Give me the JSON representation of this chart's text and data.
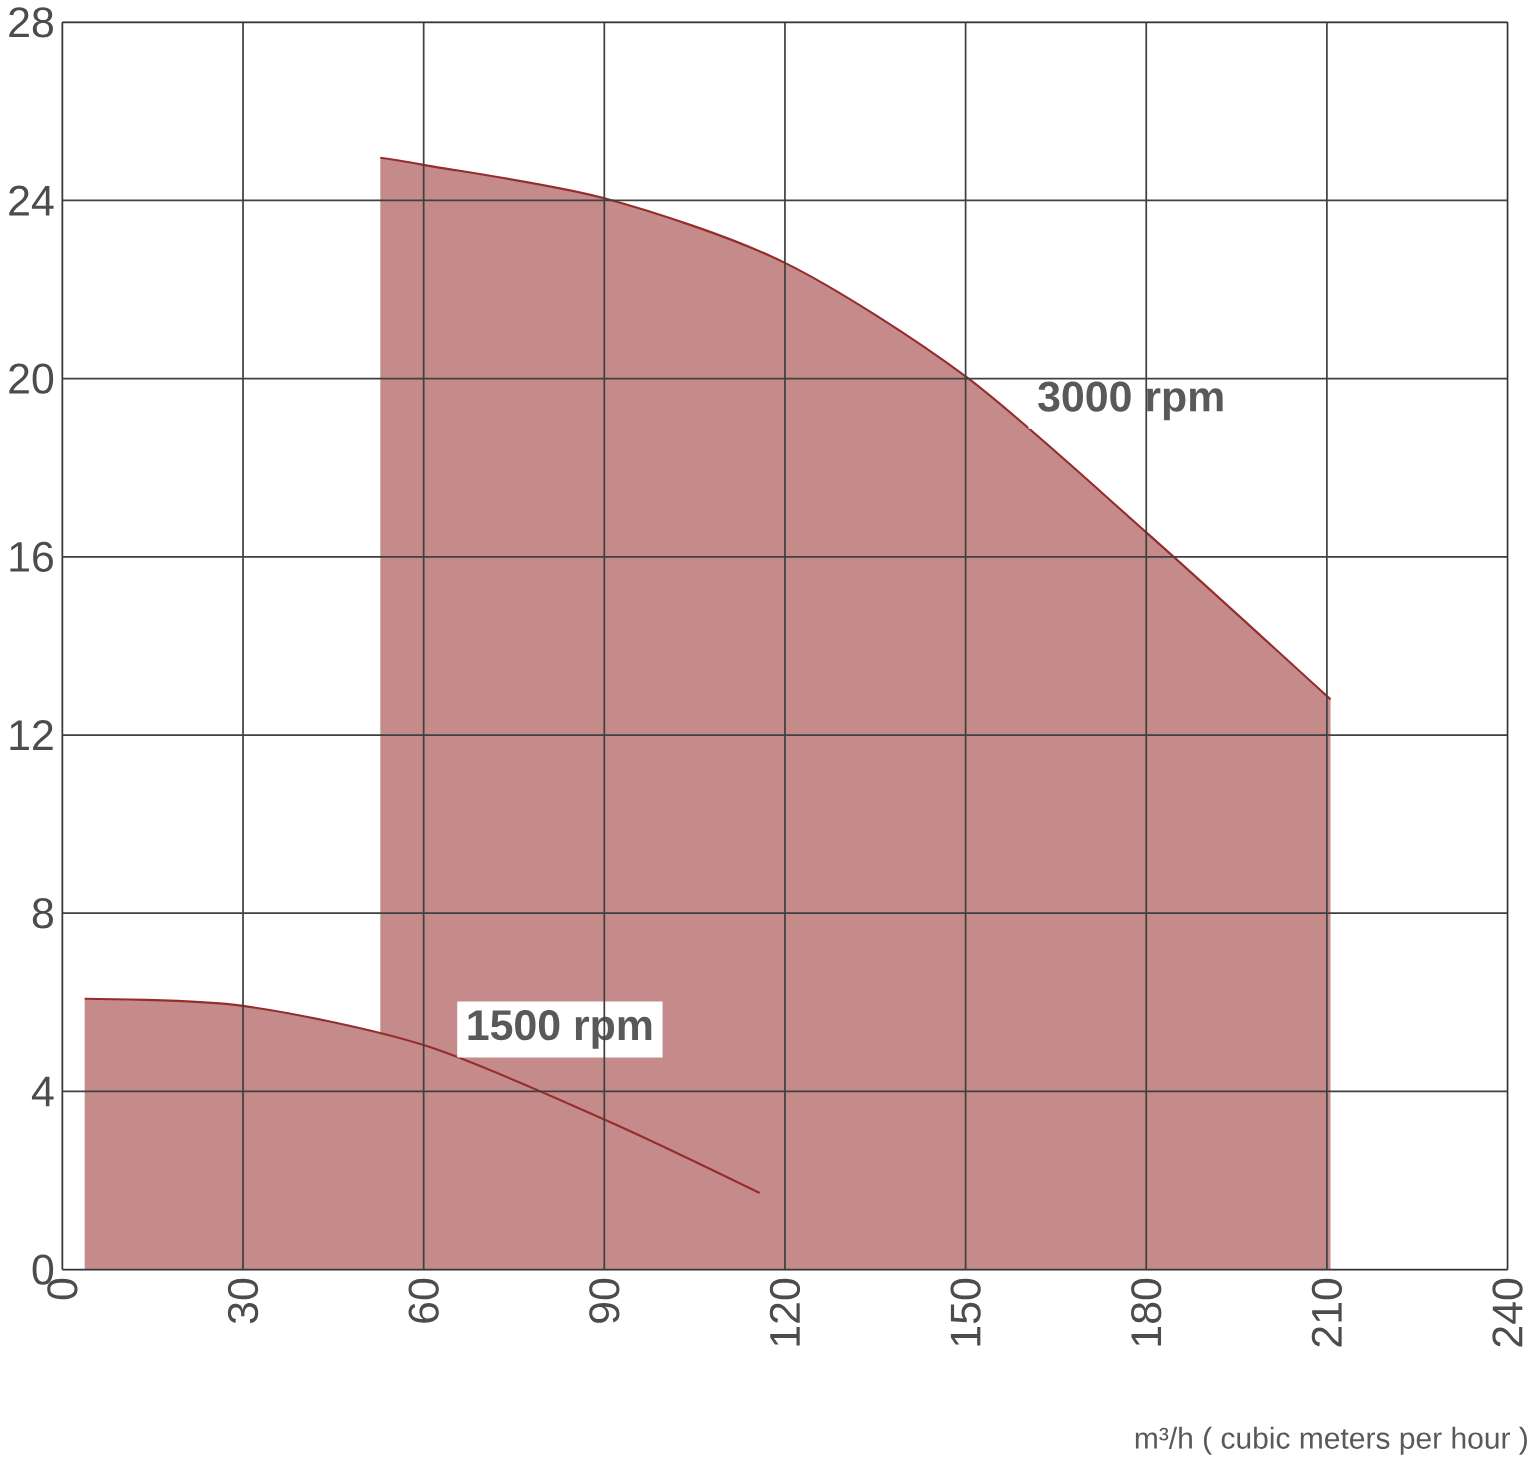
{
  "chart_data": {
    "type": "area",
    "xlabel": "m³/h ( cubic meters per hour )",
    "series": [
      {
        "name": "1500  rpm",
        "color": "#962d2d",
        "x": [
          3.7,
          30,
          60,
          90,
          115.8
        ],
        "values": [
          6.08,
          5.92,
          5.04,
          3.37,
          1.72
        ]
      },
      {
        "name": "3000 rpm",
        "color": "#962d2d",
        "x": [
          52.8,
          60,
          90,
          120,
          150,
          180,
          210.6
        ],
        "values": [
          24.96,
          24.8,
          24.05,
          22.6,
          20.05,
          16.55,
          12.8
        ]
      }
    ],
    "xlim": [
      0,
      240
    ],
    "ylim": [
      0,
      28
    ],
    "xticks": [
      0,
      30,
      60,
      90,
      120,
      150,
      180,
      210,
      240
    ],
    "yticks": [
      0,
      4,
      8,
      12,
      16,
      20,
      24,
      28
    ],
    "grid": true
  }
}
